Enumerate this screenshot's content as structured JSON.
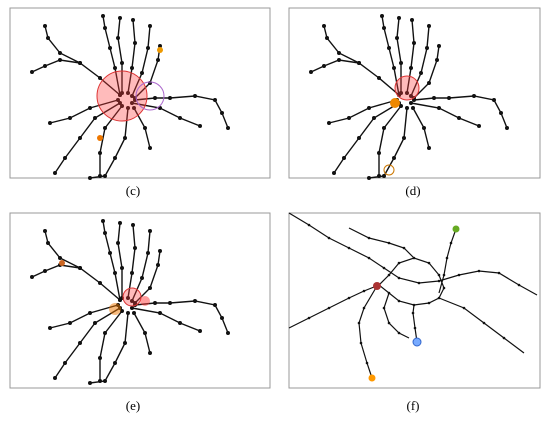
{
  "panels": [
    {
      "label": "(c)"
    },
    {
      "label": "(d)"
    },
    {
      "label": "(e)"
    },
    {
      "label": "(f)"
    }
  ]
}
